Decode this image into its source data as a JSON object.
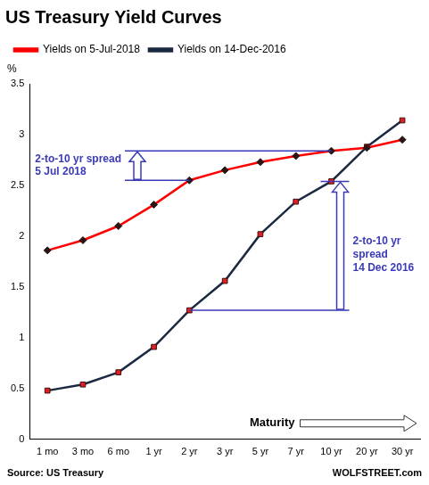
{
  "chart_data": {
    "type": "line",
    "title": "US Treasury Yield Curves",
    "y_label": "%",
    "x_label": "Maturity",
    "categories": [
      "1 mo",
      "3 mo",
      "6 mo",
      "1 yr",
      "2 yr",
      "3 yr",
      "5 yr",
      "7 yr",
      "10 yr",
      "20 yr",
      "30 yr"
    ],
    "series": [
      {
        "name": "Yields on 5-Jul-2018",
        "color": "#ff0000",
        "marker": "diamond",
        "values": [
          1.86,
          1.96,
          2.1,
          2.31,
          2.55,
          2.65,
          2.73,
          2.79,
          2.84,
          2.87,
          2.95
        ]
      },
      {
        "name": "Yields on 14-Dec-2016",
        "color": "#1b2a41",
        "marker": "square",
        "values": [
          0.48,
          0.54,
          0.66,
          0.91,
          1.27,
          1.56,
          2.02,
          2.34,
          2.54,
          2.88,
          3.14
        ]
      }
    ],
    "ylim": [
      0,
      3.5
    ],
    "yticks": [
      0,
      0.5,
      1,
      1.5,
      2,
      2.5,
      3,
      3.5
    ],
    "grid": false,
    "legend": "top",
    "annotations": [
      {
        "text": [
          "2-to-10 yr spread",
          "5 Jul 2018"
        ]
      },
      {
        "text": [
          "2-to-10 yr",
          "spread",
          "14 Dec 2016"
        ]
      }
    ],
    "source": "Source: US Treasury",
    "credit": "WOLFSTREET.com"
  }
}
